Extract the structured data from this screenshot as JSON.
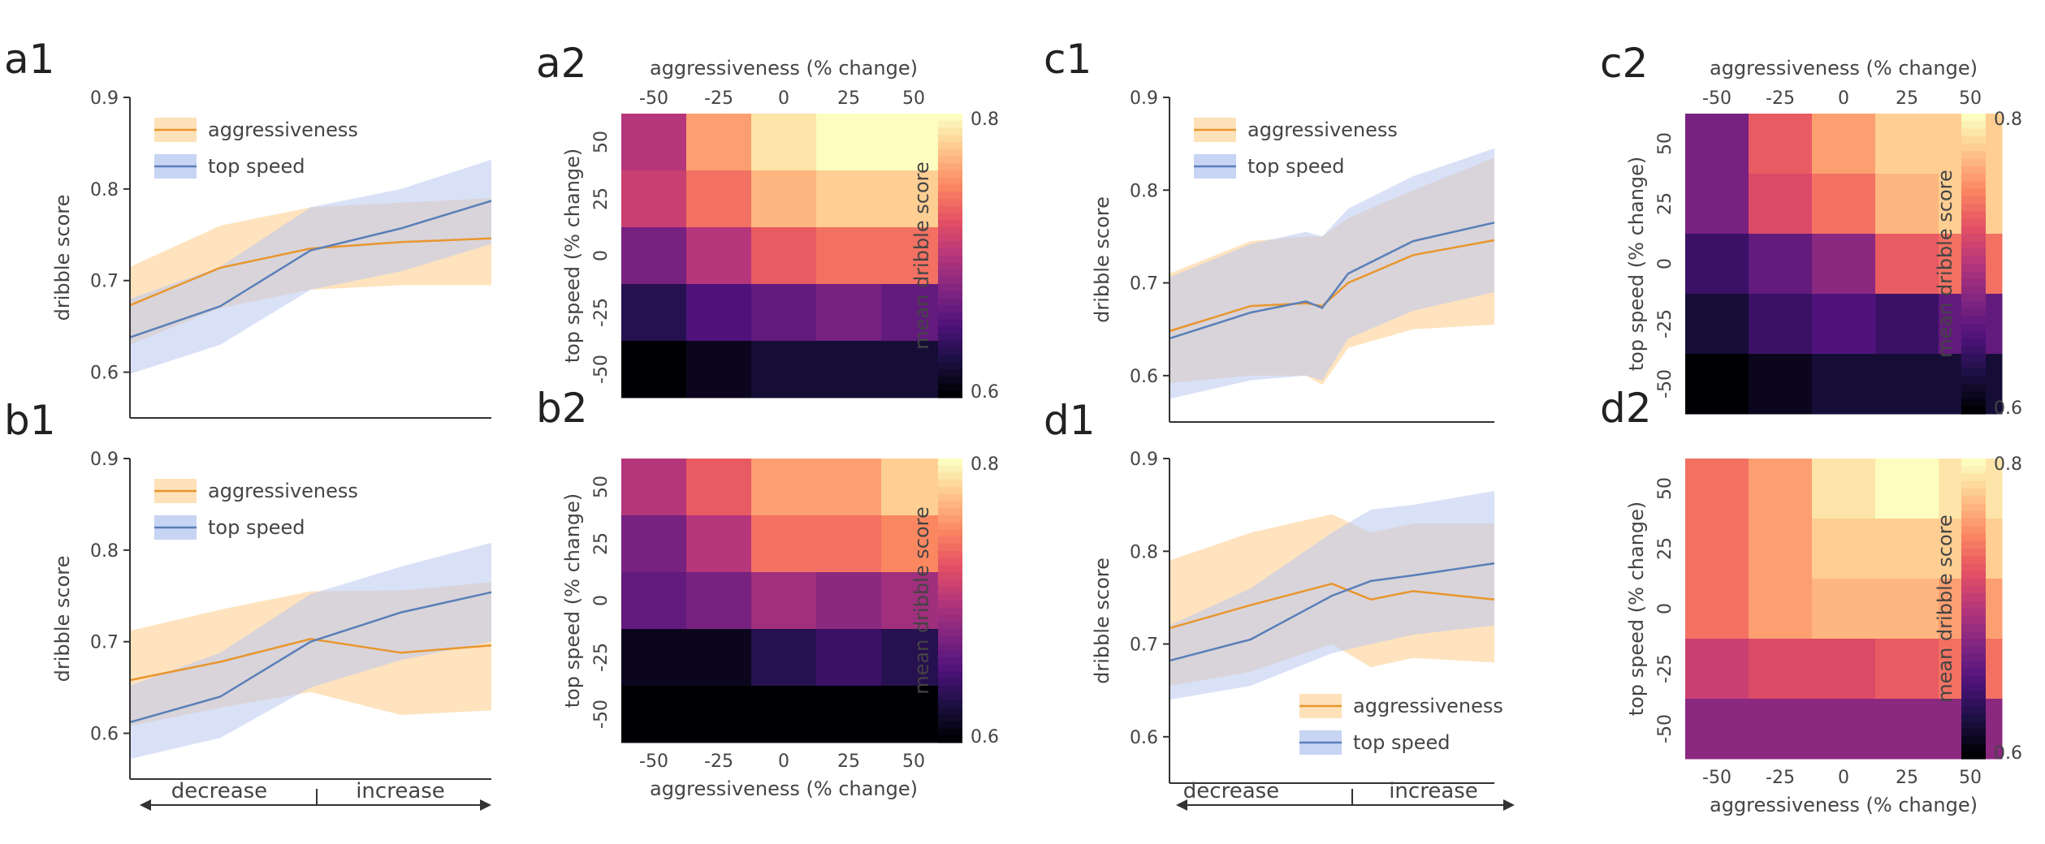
{
  "figure": {
    "arrow_labels": {
      "decrease": "decrease",
      "increase": "increase"
    },
    "colors": {
      "aggressiveness_line": "#e8962e",
      "aggressiveness_band": "#fdd9a8",
      "top_speed_line": "#5a7fb8",
      "top_speed_band": "#b9c9f0",
      "colormap": [
        "#000004",
        "#1c1044",
        "#4f127b",
        "#812581",
        "#b5367a",
        "#e55064",
        "#fb8761",
        "#fec287",
        "#fcfdbf"
      ]
    }
  },
  "chart_data": [
    {
      "id": "a1",
      "panel_label": "a1",
      "type": "line",
      "ylabel": "dribble score",
      "ylim": [
        0.55,
        0.9
      ],
      "yticks": [
        "0.6",
        "0.7",
        "0.8",
        "0.9"
      ],
      "legend_position": "top-left",
      "series": [
        {
          "name": "aggressiveness",
          "x": [
            0,
            0.25,
            0.5,
            0.75,
            1
          ],
          "values": [
            0.673,
            0.714,
            0.735,
            0.742,
            0.746
          ],
          "lower": [
            0.63,
            0.67,
            0.69,
            0.695,
            0.695
          ],
          "upper": [
            0.715,
            0.76,
            0.78,
            0.785,
            0.79
          ]
        },
        {
          "name": "top speed",
          "x": [
            0,
            0.25,
            0.5,
            0.75,
            1
          ],
          "values": [
            0.638,
            0.672,
            0.733,
            0.757,
            0.787
          ],
          "lower": [
            0.598,
            0.63,
            0.69,
            0.71,
            0.74
          ],
          "upper": [
            0.68,
            0.715,
            0.78,
            0.8,
            0.832
          ]
        }
      ]
    },
    {
      "id": "a2",
      "panel_label": "a2",
      "type": "heatmap",
      "x_categories": [
        "-50",
        "-25",
        "0",
        "25",
        "50"
      ],
      "y_categories": [
        "50",
        "25",
        "0",
        "-25",
        "-50"
      ],
      "xlabel": "aggressiveness (% change)",
      "ylabel": "top speed (% change)",
      "xlabel_position": "top",
      "colorbar_label": "mean dribble score",
      "colorbar_range": [
        0.6,
        0.8
      ],
      "colorbar_ticks": [
        "0.6",
        "0.8"
      ],
      "values": [
        [
          0.7,
          0.76,
          0.79,
          0.8,
          0.8
        ],
        [
          0.71,
          0.74,
          0.77,
          0.78,
          0.78
        ],
        [
          0.67,
          0.7,
          0.73,
          0.74,
          0.74
        ],
        [
          0.63,
          0.65,
          0.66,
          0.67,
          0.66
        ],
        [
          0.6,
          0.61,
          0.62,
          0.62,
          0.62
        ]
      ]
    },
    {
      "id": "b1",
      "panel_label": "b1",
      "type": "line",
      "ylabel": "dribble score",
      "ylim": [
        0.55,
        0.9
      ],
      "yticks": [
        "0.6",
        "0.7",
        "0.8",
        "0.9"
      ],
      "legend_position": "top-left",
      "series": [
        {
          "name": "aggressiveness",
          "x": [
            0,
            0.25,
            0.5,
            0.75,
            1
          ],
          "values": [
            0.658,
            0.678,
            0.703,
            0.688,
            0.696
          ],
          "lower": [
            0.608,
            0.628,
            0.645,
            0.62,
            0.625
          ],
          "upper": [
            0.712,
            0.735,
            0.755,
            0.756,
            0.765
          ]
        },
        {
          "name": "top speed",
          "x": [
            0,
            0.25,
            0.5,
            0.75,
            1
          ],
          "values": [
            0.612,
            0.64,
            0.7,
            0.732,
            0.754
          ],
          "lower": [
            0.572,
            0.595,
            0.65,
            0.68,
            0.7
          ],
          "upper": [
            0.652,
            0.688,
            0.752,
            0.782,
            0.808
          ]
        }
      ]
    },
    {
      "id": "b2",
      "panel_label": "b2",
      "type": "heatmap",
      "x_categories": [
        "-50",
        "-25",
        "0",
        "25",
        "50"
      ],
      "y_categories": [
        "50",
        "25",
        "0",
        "-25",
        "-50"
      ],
      "xlabel": "aggressiveness (% change)",
      "ylabel": "top speed (% change)",
      "xlabel_position": "bottom",
      "colorbar_label": "mean dribble score",
      "colorbar_range": [
        0.6,
        0.8
      ],
      "colorbar_ticks": [
        "0.6",
        "0.8"
      ],
      "values": [
        [
          0.7,
          0.73,
          0.76,
          0.76,
          0.78
        ],
        [
          0.67,
          0.7,
          0.74,
          0.74,
          0.75
        ],
        [
          0.66,
          0.67,
          0.69,
          0.68,
          0.69
        ],
        [
          0.61,
          0.61,
          0.63,
          0.64,
          0.63
        ],
        [
          0.6,
          0.6,
          0.6,
          0.6,
          0.6
        ]
      ]
    },
    {
      "id": "c1",
      "panel_label": "c1",
      "type": "line",
      "ylabel": "dribble score",
      "ylim": [
        0.55,
        0.9
      ],
      "yticks": [
        "0.6",
        "0.7",
        "0.8",
        "0.9"
      ],
      "legend_position": "top-left",
      "series": [
        {
          "name": "aggressiveness",
          "x": [
            0,
            0.25,
            0.42,
            0.47,
            0.55,
            0.75,
            1
          ],
          "values": [
            0.648,
            0.675,
            0.678,
            0.675,
            0.7,
            0.73,
            0.746
          ],
          "lower": [
            0.592,
            0.6,
            0.6,
            0.59,
            0.63,
            0.65,
            0.655
          ],
          "upper": [
            0.71,
            0.745,
            0.75,
            0.75,
            0.77,
            0.8,
            0.835
          ]
        },
        {
          "name": "top speed",
          "x": [
            0,
            0.25,
            0.42,
            0.47,
            0.55,
            0.75,
            1
          ],
          "values": [
            0.64,
            0.668,
            0.68,
            0.673,
            0.71,
            0.745,
            0.765
          ],
          "lower": [
            0.575,
            0.595,
            0.6,
            0.595,
            0.64,
            0.67,
            0.69
          ],
          "upper": [
            0.706,
            0.742,
            0.755,
            0.75,
            0.78,
            0.815,
            0.845
          ]
        }
      ]
    },
    {
      "id": "c2",
      "panel_label": "c2",
      "type": "heatmap",
      "x_categories": [
        "-50",
        "-25",
        "0",
        "25",
        "50"
      ],
      "y_categories": [
        "50",
        "25",
        "0",
        "-25",
        "-50"
      ],
      "xlabel": "aggressiveness (% change)",
      "ylabel": "top speed (% change)",
      "xlabel_position": "top",
      "colorbar_label": "mean dribble score",
      "colorbar_range": [
        0.6,
        0.8
      ],
      "colorbar_ticks": [
        "0.6",
        "0.8"
      ],
      "values": [
        [
          0.67,
          0.73,
          0.76,
          0.78,
          0.78
        ],
        [
          0.67,
          0.72,
          0.74,
          0.77,
          0.78
        ],
        [
          0.64,
          0.66,
          0.68,
          0.73,
          0.74
        ],
        [
          0.62,
          0.64,
          0.65,
          0.64,
          0.66
        ],
        [
          0.6,
          0.61,
          0.62,
          0.62,
          0.62
        ]
      ]
    },
    {
      "id": "d1",
      "panel_label": "d1",
      "type": "line",
      "ylabel": "dribble score",
      "ylim": [
        0.55,
        0.9
      ],
      "yticks": [
        "0.6",
        "0.7",
        "0.8",
        "0.9"
      ],
      "legend_position": "bottom-right",
      "series": [
        {
          "name": "aggressiveness",
          "x": [
            0,
            0.25,
            0.5,
            0.62,
            0.75,
            1
          ],
          "values": [
            0.717,
            0.742,
            0.765,
            0.748,
            0.757,
            0.748
          ],
          "lower": [
            0.655,
            0.67,
            0.7,
            0.675,
            0.685,
            0.68
          ],
          "upper": [
            0.79,
            0.82,
            0.84,
            0.82,
            0.83,
            0.83
          ]
        },
        {
          "name": "top speed",
          "x": [
            0,
            0.25,
            0.5,
            0.62,
            0.75,
            1
          ],
          "values": [
            0.682,
            0.705,
            0.752,
            0.768,
            0.774,
            0.787
          ],
          "lower": [
            0.64,
            0.655,
            0.69,
            0.7,
            0.71,
            0.72
          ],
          "upper": [
            0.72,
            0.76,
            0.82,
            0.845,
            0.85,
            0.865
          ]
        }
      ]
    },
    {
      "id": "d2",
      "panel_label": "d2",
      "type": "heatmap",
      "x_categories": [
        "-50",
        "-25",
        "0",
        "25",
        "50"
      ],
      "y_categories": [
        "50",
        "25",
        "0",
        "-25",
        "-50"
      ],
      "xlabel": "aggressiveness (% change)",
      "ylabel": "top speed (% change)",
      "xlabel_position": "bottom",
      "colorbar_label": "mean dribble score",
      "colorbar_range": [
        0.6,
        0.8
      ],
      "colorbar_ticks": [
        "0.6",
        "0.8"
      ],
      "values": [
        [
          0.74,
          0.76,
          0.79,
          0.8,
          0.79
        ],
        [
          0.74,
          0.76,
          0.78,
          0.78,
          0.78
        ],
        [
          0.74,
          0.76,
          0.77,
          0.77,
          0.76
        ],
        [
          0.71,
          0.72,
          0.72,
          0.73,
          0.74
        ],
        [
          0.68,
          0.68,
          0.68,
          0.68,
          0.68
        ]
      ]
    }
  ]
}
